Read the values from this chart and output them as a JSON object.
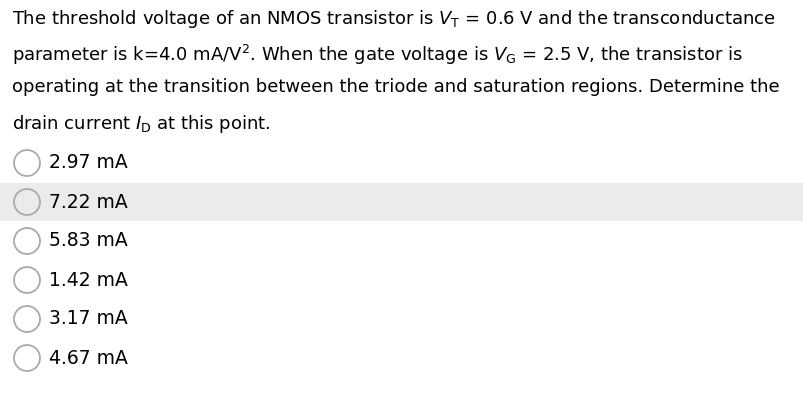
{
  "background_color": "#ffffff",
  "choices": [
    "2.97 mA",
    "7.22 mA",
    "5.83 mA",
    "1.42 mA",
    "3.17 mA",
    "4.67 mA"
  ],
  "highlighted_choice_index": 1,
  "highlight_color": "#ebebeb",
  "font_size": 13.0,
  "choice_font_size": 13.5,
  "text_color": "#000000",
  "circle_edge_color": "#aaaaaa",
  "line1": "The threshold voltage of an NMOS transistor is $V_\\mathsf{T}$ = 0.6 V and the transconductance",
  "line2": "parameter is k=4.0 mA/V$^2$. When the gate voltage is $V_\\mathsf{G}$ = 2.5 V, the transistor is",
  "line3": "operating at the transition between the triode and saturation regions. Determine the",
  "line4": "drain current $I_\\mathsf{D}$ at this point."
}
